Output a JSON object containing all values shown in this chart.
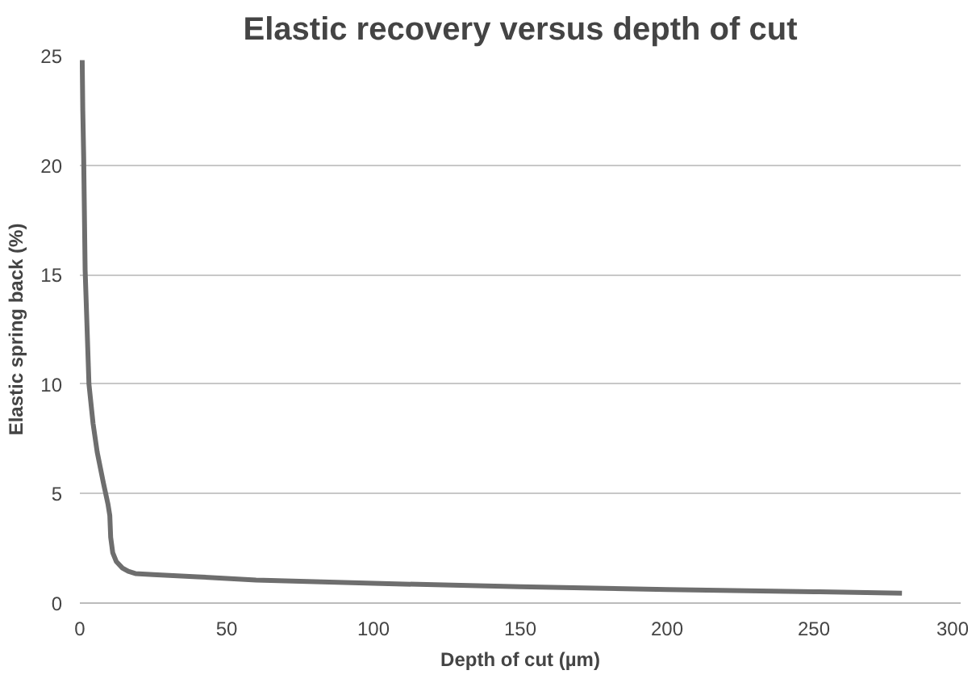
{
  "chart_data": {
    "type": "line",
    "title": "Elastic recovery versus depth of cut",
    "xlabel": "Depth of cut (µm)",
    "ylabel": "Elastic spring back (%)",
    "series": [
      {
        "color": "#6e6e6e",
        "x": [
          0.8,
          1.0,
          1.3,
          1.8,
          3.1,
          4.5,
          5.9,
          8.0,
          9.6,
          10.2,
          10.5,
          11.2,
          12.4,
          14.5,
          16.5,
          18.9,
          25,
          40,
          60,
          100,
          150,
          200,
          250,
          280
        ],
        "values": [
          24.8,
          22.5,
          20.4,
          15.2,
          10.0,
          8.2,
          6.9,
          5.5,
          4.5,
          4.0,
          3.0,
          2.3,
          1.9,
          1.6,
          1.45,
          1.35,
          1.3,
          1.2,
          1.05,
          0.9,
          0.75,
          0.62,
          0.52,
          0.45
        ]
      }
    ],
    "xlim": [
      0,
      300
    ],
    "ylim": [
      0,
      25
    ],
    "xticks": [
      0,
      50,
      100,
      150,
      200,
      250,
      300
    ],
    "yticks": [
      0,
      5,
      10,
      15,
      20,
      25
    ],
    "grid": "y",
    "marker": "none",
    "line_style": "solid"
  }
}
